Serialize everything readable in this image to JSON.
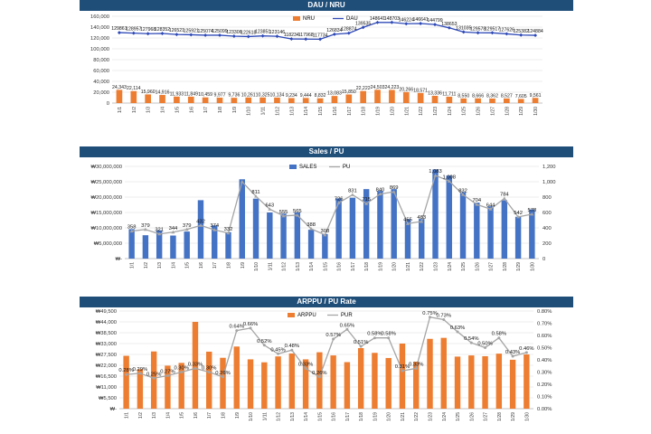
{
  "chart_data": [
    {
      "type": "bar",
      "title": "DAU / NRU",
      "categories": [
        "1/1",
        "1/2",
        "1/3",
        "1/4",
        "1/5",
        "1/6",
        "1/7",
        "1/8",
        "1/9",
        "1/10",
        "1/11",
        "1/12",
        "1/13",
        "1/14",
        "1/15",
        "1/16",
        "1/17",
        "1/18",
        "1/19",
        "1/20",
        "1/21",
        "1/22",
        "1/23",
        "1/24",
        "1/25",
        "1/26",
        "1/27",
        "1/28",
        "1/29",
        "1/30"
      ],
      "y_ticks": [
        "160,000",
        "140,000",
        "120,000",
        "100,000",
        "80,000",
        "60,000",
        "40,000",
        "20,000",
        "0"
      ],
      "ylim": [
        0,
        160000
      ],
      "legend": [
        "NRU",
        "DAU"
      ],
      "series": [
        {
          "name": "NRU",
          "type": "bar",
          "color": "#ed7d31",
          "values": [
            24343,
            22114,
            15960,
            14916,
            11933,
            11849,
            10459,
            9977,
            9736,
            10261,
            10325,
            10134,
            9234,
            9444,
            8832,
            13083,
            15850,
            22222,
            24503,
            24223,
            20266,
            18571,
            13336,
            11711,
            8550,
            8666,
            8362,
            8527,
            7605,
            9561
          ],
          "labels": [
            "24,343",
            "22,114",
            "15,960",
            "14,916",
            "11,933",
            "11,849",
            "10,459",
            "9,977",
            "9,736",
            "10,261",
            "10,325",
            "10,134",
            "9,234",
            "9,444",
            "8,832",
            "13,083",
            "15,850",
            "22,222",
            "24,503",
            "24,223",
            "20,266",
            "18,571",
            "13,336",
            "11,711",
            "8,550",
            "8,666",
            "8,362",
            "8,527",
            "7,605",
            "9,561"
          ]
        },
        {
          "name": "DAU",
          "type": "line",
          "color": "#2e49b7",
          "values": [
            129861,
            128957,
            127968,
            128352,
            126521,
            125921,
            125074,
            125099,
            123306,
            122618,
            123851,
            123146,
            118234,
            117968,
            117734,
            126834,
            128874,
            139535,
            148641,
            148703,
            146224,
            146641,
            144799,
            138653,
            131035,
            129578,
            129517,
            127626,
            125382,
            124884
          ],
          "labels": [
            "129861",
            "128957",
            "127968",
            "128352",
            "126521",
            "125921",
            "125074",
            "125099",
            "123306",
            "122618",
            "123851",
            "123146",
            "118234",
            "117968",
            "117734",
            "126834",
            "128874",
            "139535",
            "148641",
            "148703",
            "146224",
            "146641",
            "144799",
            "138653",
            "131035",
            "129578",
            "129517",
            "127626",
            "125382",
            "124884"
          ]
        }
      ]
    },
    {
      "type": "bar",
      "title": "Sales / PU",
      "categories": [
        "1/1",
        "1/2",
        "1/3",
        "1/4",
        "1/5",
        "1/6",
        "1/7",
        "1/8",
        "1/9",
        "1/10",
        "1/11",
        "1/12",
        "1/13",
        "1/14",
        "1/15",
        "1/16",
        "1/17",
        "1/18",
        "1/19",
        "1/20",
        "1/21",
        "1/22",
        "1/23",
        "1/24",
        "1/25",
        "1/26",
        "1/27",
        "1/28",
        "1/29",
        "1/30"
      ],
      "y_ticks": [
        "₩30,000,000",
        "₩25,000,000",
        "₩20,000,000",
        "₩15,000,000",
        "₩10,000,000",
        "₩5,000,000",
        "₩-"
      ],
      "y2_ticks": [
        "1,200",
        "1,000",
        "800",
        "600",
        "400",
        "200",
        "0"
      ],
      "ylim": [
        0,
        30000000
      ],
      "y2lim": [
        0,
        1200
      ],
      "legend": [
        "SALES",
        "PU"
      ],
      "series": [
        {
          "name": "SALES",
          "type": "bar",
          "color": "#4472c4",
          "values": [
            9600000,
            7600000,
            9200000,
            7500000,
            8800000,
            19000000,
            10800000,
            8600000,
            25800000,
            19500000,
            15000000,
            14600000,
            15000000,
            9400000,
            8000000,
            19600000,
            19800000,
            22600000,
            22000000,
            22600000,
            12800000,
            12900000,
            29000000,
            27000000,
            21600000,
            18200000,
            17000000,
            19000000,
            13600000,
            16000000
          ]
        },
        {
          "name": "PU",
          "type": "line",
          "color": "#a5a5a5",
          "values": [
            358,
            379,
            321,
            344,
            379,
            432,
            374,
            332,
            1000,
            811,
            643,
            555,
            565,
            388,
            308,
            726,
            831,
            715,
            840,
            869,
            455,
            483,
            1083,
            1008,
            832,
            704,
            644,
            784,
            542,
            578
          ],
          "labels": [
            "358",
            "379",
            "321",
            "344",
            "379",
            "432",
            "374",
            "332",
            "",
            "811",
            "643",
            "555",
            "565",
            "388",
            "308",
            "726",
            "831",
            "715",
            "840",
            "869",
            "455",
            "483",
            "1,083",
            "1,008",
            "832",
            "704",
            "644",
            "784",
            "542",
            "578"
          ]
        }
      ]
    },
    {
      "type": "bar",
      "title": "ARPPU / PU Rate",
      "categories": [
        "1/1",
        "1/2",
        "1/3",
        "1/4",
        "1/5",
        "1/6",
        "1/7",
        "1/8",
        "1/9",
        "1/10",
        "1/11",
        "1/12",
        "1/13",
        "1/14",
        "1/15",
        "1/16",
        "1/17",
        "1/18",
        "1/19",
        "1/20",
        "1/21",
        "1/22",
        "1/23",
        "1/24",
        "1/25",
        "1/26",
        "1/27",
        "1/28",
        "1/29",
        "1/30"
      ],
      "y_ticks": [
        "₩49,500",
        "₩44,000",
        "₩38,500",
        "₩33,000",
        "₩27,500",
        "₩22,000",
        "₩16,500",
        "₩11,000",
        "₩5,500",
        "₩-"
      ],
      "y2_ticks": [
        "0.80%",
        "0.70%",
        "0.60%",
        "0.50%",
        "0.40%",
        "0.30%",
        "0.20%",
        "0.10%",
        "0.00%"
      ],
      "ylim": [
        0,
        49500
      ],
      "y2lim": [
        0,
        0.8
      ],
      "legend": [
        "ARPPU",
        "PUR"
      ],
      "series": [
        {
          "name": "ARPPU",
          "type": "bar",
          "color": "#ed7d31",
          "values": [
            26800,
            20000,
            29000,
            21800,
            23200,
            44000,
            28900,
            25800,
            31500,
            25000,
            23500,
            26500,
            28000,
            25000,
            28600,
            27000,
            23600,
            30700,
            28300,
            25700,
            33000,
            23800,
            35400,
            35900,
            26400,
            27000,
            26600,
            27900,
            24800,
            27500
          ]
        },
        {
          "name": "PUR",
          "type": "line",
          "color": "#a5a5a5",
          "values": [
            0.28,
            0.29,
            0.25,
            0.27,
            0.3,
            0.33,
            0.3,
            0.26,
            0.64,
            0.66,
            0.52,
            0.45,
            0.48,
            0.33,
            0.26,
            0.57,
            0.65,
            0.51,
            0.58,
            0.58,
            0.31,
            0.33,
            0.75,
            0.73,
            0.63,
            0.54,
            0.5,
            0.58,
            0.43,
            0.46
          ],
          "labels": [
            "0.28%",
            "0.29%",
            "0.25%",
            "0.27%",
            "0.30%",
            "0.33%",
            "0.30%",
            "0.26%",
            "0.64%",
            "0.66%",
            "0.52%",
            "0.45%",
            "0.48%",
            "0.33%",
            "0.26%",
            "0.57%",
            "0.65%",
            "0.51%",
            "0.58%",
            "0.58%",
            "0.31%",
            "0.33%",
            "0.75%",
            "0.73%",
            "0.63%",
            "0.54%",
            "0.50%",
            "0.58%",
            "0.43%",
            "0.46%"
          ]
        }
      ]
    }
  ]
}
